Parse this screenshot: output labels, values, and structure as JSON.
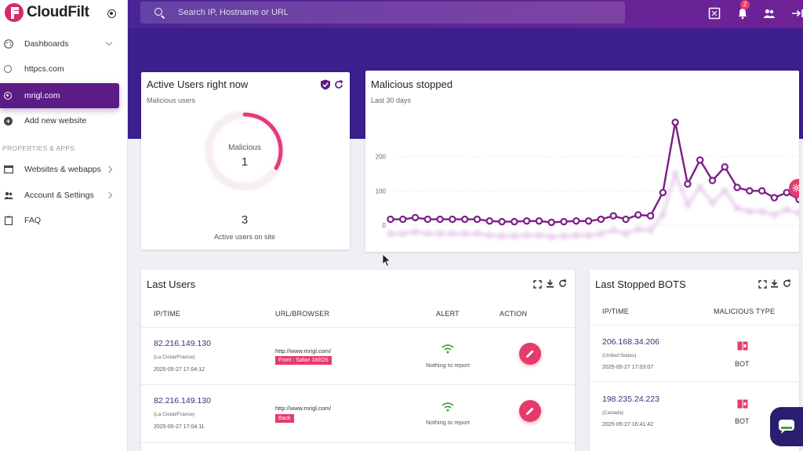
{
  "brand": {
    "name": "CloudFilt"
  },
  "sidebar": {
    "items": [
      {
        "label": "Dashboards",
        "icon": "palette-icon"
      },
      {
        "label": "httpcs.com",
        "icon": "radio-icon"
      },
      {
        "label": "mrigl.com",
        "icon": "radio-icon",
        "active": true
      },
      {
        "label": "Add new website",
        "icon": "plus-circle-icon"
      }
    ],
    "section_label": "PROPERTIES & APPS",
    "apps": [
      {
        "label": "Websites & webapps",
        "icon": "browser-icon"
      },
      {
        "label": "Account & Settings",
        "icon": "users-icon"
      },
      {
        "label": "FAQ",
        "icon": "clipboard-icon"
      }
    ]
  },
  "header": {
    "search_placeholder": "Search IP, Hostname or URL",
    "notification_count": "2"
  },
  "active_users": {
    "title": "Active Users right now",
    "subtitle": "Malicious users",
    "donut_label": "Malicious",
    "malicious_count": "1",
    "total": "3",
    "total_label": "Active users on site",
    "malicious_fraction": 0.33
  },
  "malicious_stopped": {
    "title": "Malicious stopped",
    "subtitle": "Last 30 days"
  },
  "chart_data": {
    "type": "line",
    "title": "Malicious stopped",
    "subtitle": "Last 30 days",
    "ylim": [
      0,
      300
    ],
    "yticks": [
      "0",
      "100",
      "200"
    ],
    "grid": true,
    "series": [
      {
        "values": [
          17,
          17,
          22,
          17,
          17,
          17,
          17,
          17,
          12,
          10,
          10,
          12,
          12,
          8,
          10,
          12,
          12,
          17,
          27,
          17,
          30,
          27,
          95,
          300,
          120,
          190,
          130,
          170,
          110,
          100,
          100,
          80,
          95,
          75
        ]
      },
      {
        "values": [
          -25,
          -25,
          -20,
          -25,
          -25,
          -25,
          -25,
          -25,
          -30,
          -32,
          -32,
          -30,
          -30,
          -34,
          -32,
          -30,
          -30,
          -25,
          -15,
          -25,
          -12,
          -15,
          30,
          150,
          60,
          110,
          65,
          100,
          50,
          40,
          40,
          30,
          45,
          35
        ]
      }
    ],
    "colors": [
      "#7a1f86",
      "#ead2ee"
    ]
  },
  "last_users": {
    "title": "Last Users",
    "columns": [
      "IP/TIME",
      "URL/BROWSER",
      "ALERT",
      "ACTION"
    ],
    "rows": [
      {
        "ip": "82.216.149.130",
        "location": "(La Ciotat/France)",
        "time": "2025-05-27 17:04:12",
        "url": "http://www.mrigl.com/",
        "browser": "Front : Safari 18/iOS",
        "alert": "Nothing to report"
      },
      {
        "ip": "82.216.149.130",
        "location": "(La Ciotat/France)",
        "time": "2025-05-27 17:04:11",
        "url": "http://www.mrigl.com/",
        "browser": "Back",
        "alert": "Nothing to report"
      }
    ]
  },
  "last_bots": {
    "title": "Last Stopped BOTS",
    "columns": [
      "IP/TIME",
      "MALICIOUS TYPE"
    ],
    "rows": [
      {
        "ip": "206.168.34.206",
        "location": "(United States)",
        "time": "2025-05-27 17:03:07",
        "type": "BOT"
      },
      {
        "ip": "198.235.24.223",
        "location": "(Canada)",
        "time": "2025-05-27 16:41:42",
        "type": "BOT"
      }
    ]
  },
  "colors": {
    "accent": "#e63a6b",
    "primary": "#5c1c86",
    "header": "#3c1e8c"
  }
}
